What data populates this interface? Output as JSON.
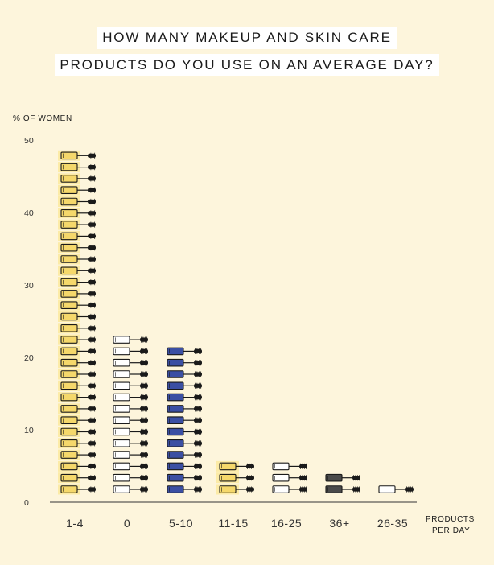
{
  "chart_data": {
    "type": "bar",
    "title_lines": [
      "HOW MANY MAKEUP AND SKIN CARE",
      "PRODUCTS DO YOU USE ON AN AVERAGE DAY?"
    ],
    "ylabel": "% OF WOMEN",
    "xlabel_lines": [
      "PRODUCTS",
      "PER DAY"
    ],
    "ylim": [
      0,
      50
    ],
    "yticks": [
      0,
      10,
      20,
      30,
      40,
      50
    ],
    "categories": [
      "1-4",
      "0",
      "5-10",
      "11-15",
      "16-25",
      "36+",
      "26-35"
    ],
    "values": [
      48,
      23,
      21,
      5,
      5,
      3.5,
      2
    ],
    "bar_style": "stacked mascara icons",
    "colors": {
      "1-4": "#f5d86b",
      "0": "#ffffff",
      "5-10": "#3b4fa3",
      "11-15": "#f5d86b",
      "16-25": "#ffffff",
      "36+": "#4a4a4a",
      "26-35": "#ffffff"
    },
    "background": "#fdf5dc"
  }
}
